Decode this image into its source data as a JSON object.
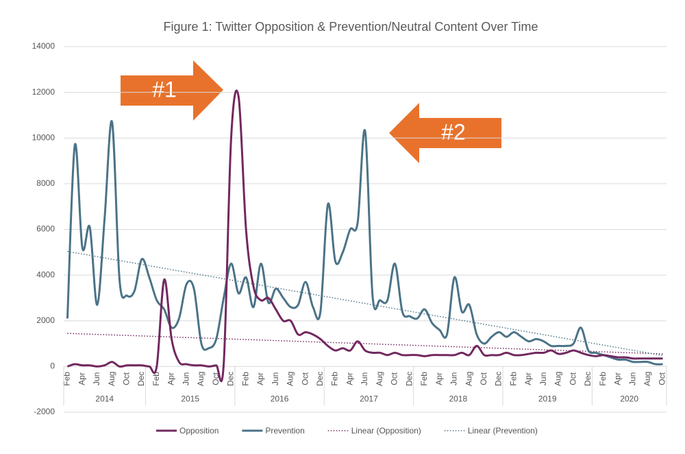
{
  "chart_data": {
    "type": "line",
    "title": "Figure 1: Twitter Opposition & Prevention/Neutral Content Over Time",
    "categories": [
      "Feb",
      null,
      "Apr",
      null,
      "Jun",
      null,
      "Aug",
      null,
      "Oct",
      null,
      "Dec",
      null,
      "Feb",
      null,
      "Apr",
      null,
      "Jun",
      null,
      "Aug",
      null,
      "Oct",
      null,
      "Dec",
      null,
      "Feb",
      null,
      "Apr",
      null,
      "Jun",
      null,
      "Aug",
      null,
      "Oct",
      null,
      "Dec",
      null,
      "Feb",
      null,
      "Apr",
      null,
      "Jun",
      null,
      "Aug",
      null,
      "Oct",
      null,
      "Dec",
      null,
      "Feb",
      null,
      "Apr",
      null,
      "Jun",
      null,
      "Aug",
      null,
      "Oct",
      null,
      "Dec",
      null,
      "Feb",
      null,
      "Apr",
      null,
      "Jun",
      null,
      "Aug",
      null,
      "Oct",
      null,
      "Dec",
      null,
      "Feb",
      null,
      "Apr",
      null,
      "Jun",
      null,
      "Aug",
      null,
      "Oct"
    ],
    "years": [
      "2014",
      "2015",
      "2016",
      "2017",
      "2018",
      "2019",
      "2020"
    ],
    "series": [
      {
        "name": "Opposition",
        "color": "#72285f",
        "values": [
          0,
          100,
          50,
          50,
          0,
          50,
          200,
          0,
          50,
          50,
          50,
          0,
          0,
          3800,
          1200,
          200,
          100,
          50,
          50,
          0,
          50,
          100,
          10000,
          11800,
          6000,
          3500,
          2900,
          3000,
          2500,
          2000,
          2000,
          1400,
          1500,
          1400,
          1200,
          900,
          700,
          800,
          700,
          1100,
          700,
          600,
          600,
          500,
          600,
          500,
          500,
          500,
          450,
          500,
          500,
          500,
          500,
          600,
          500,
          900,
          500,
          500,
          500,
          600,
          500,
          500,
          550,
          600,
          600,
          700,
          550,
          600,
          700,
          600,
          500,
          450,
          500,
          450,
          400,
          400,
          350,
          350,
          350,
          350,
          350
        ]
      },
      {
        "name": "Prevention",
        "color": "#4b7387",
        "values": [
          2100,
          9700,
          5200,
          6100,
          2700,
          6500,
          10700,
          3800,
          3100,
          3300,
          4700,
          3900,
          2900,
          2500,
          1700,
          2100,
          3600,
          3400,
          1000,
          800,
          1200,
          3000,
          4500,
          3200,
          3900,
          2600,
          4500,
          2800,
          3400,
          3000,
          2600,
          2700,
          3700,
          2600,
          2400,
          7100,
          4600,
          5000,
          6000,
          6300,
          10300,
          3100,
          2900,
          2900,
          4500,
          2400,
          2200,
          2100,
          2500,
          1900,
          1600,
          1400,
          3900,
          2400,
          2700,
          1400,
          1000,
          1300,
          1500,
          1300,
          1500,
          1300,
          1100,
          1200,
          1100,
          900,
          900,
          900,
          1000,
          1700,
          700,
          600,
          500,
          400,
          300,
          300,
          200,
          200,
          200,
          100,
          100
        ]
      }
    ],
    "trendlines": [
      "Linear (Opposition)",
      "Linear (Prevention)"
    ],
    "ylim": [
      -2000,
      14000
    ],
    "yticks": [
      -2000,
      0,
      2000,
      4000,
      6000,
      8000,
      10000,
      12000,
      14000
    ],
    "grid": true,
    "annotations": [
      "#1",
      "#2"
    ]
  }
}
